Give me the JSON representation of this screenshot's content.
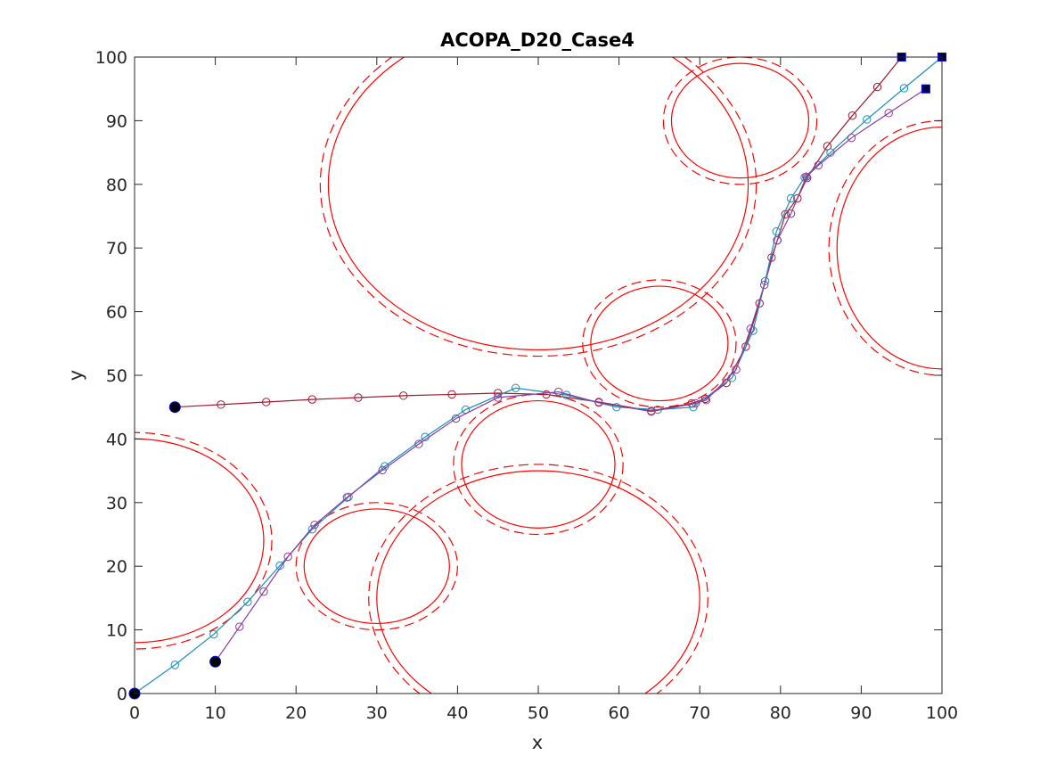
{
  "chart_data": {
    "type": "line",
    "title": "ACOPA_D20_Case4",
    "xlabel": "x",
    "ylabel": "y",
    "xlim": [
      0,
      100
    ],
    "ylim": [
      0,
      100
    ],
    "xticks": [
      0,
      10,
      20,
      30,
      40,
      50,
      60,
      70,
      80,
      90,
      100
    ],
    "yticks": [
      0,
      10,
      20,
      30,
      40,
      50,
      60,
      70,
      80,
      90,
      100
    ],
    "grid": false,
    "obstacles": [
      {
        "cx": 50,
        "cy": 80,
        "rx": 26,
        "ry": 26,
        "rx_outer": 27,
        "ry_outer": 27
      },
      {
        "cx": 75,
        "cy": 90,
        "rx": 8.5,
        "ry": 9,
        "rx_outer": 9.5,
        "ry_outer": 10
      },
      {
        "cx": 65,
        "cy": 55,
        "rx": 8.5,
        "ry": 9,
        "rx_outer": 9.5,
        "ry_outer": 10
      },
      {
        "cx": 100,
        "cy": 70,
        "rx": 13,
        "ry": 19,
        "rx_outer": 14,
        "ry_outer": 20
      },
      {
        "cx": 50,
        "cy": 36,
        "rx": 9.5,
        "ry": 10,
        "rx_outer": 10.5,
        "ry_outer": 11
      },
      {
        "cx": 0,
        "cy": 24,
        "rx": 16,
        "ry": 16,
        "rx_outer": 17,
        "ry_outer": 17
      },
      {
        "cx": 30,
        "cy": 20,
        "rx": 9,
        "ry": 9,
        "rx_outer": 10,
        "ry_outer": 10
      },
      {
        "cx": 50,
        "cy": 15,
        "rx": 20,
        "ry": 20,
        "rx_outer": 21,
        "ry_outer": 21
      }
    ],
    "series": [
      {
        "color": "#a31a2e",
        "start": [
          5,
          45
        ],
        "goal": [
          95,
          100
        ],
        "x": [
          5,
          10.7,
          16.3,
          22,
          27.7,
          33.3,
          39.3,
          45,
          51,
          57.5,
          64,
          69,
          70.7,
          73.3,
          75.7,
          77.4,
          78.9,
          79.6,
          80.6,
          82.1,
          83.3,
          85.8,
          88.9,
          92,
          95
        ],
        "y": [
          45,
          45.4,
          45.8,
          46.2,
          46.5,
          46.8,
          47,
          47.2,
          47,
          45.8,
          44.4,
          45.6,
          46.3,
          48.8,
          54.5,
          61.3,
          68.5,
          71.2,
          75.3,
          77.8,
          81,
          86,
          90.8,
          95.3,
          100
        ]
      },
      {
        "color": "#1a8fba",
        "start": [
          0,
          0
        ],
        "goal": [
          100,
          100
        ],
        "x": [
          0,
          5,
          9.8,
          14,
          18,
          22,
          26.5,
          31,
          36,
          41,
          47.2,
          53.5,
          59.7,
          64.8,
          69.2,
          74,
          76.6,
          78.1,
          79.5,
          81.3,
          83,
          86.2,
          90.7,
          95.3,
          100
        ],
        "y": [
          0,
          4.5,
          9.3,
          14.4,
          20.1,
          25.8,
          30.9,
          35.7,
          40.3,
          44.6,
          48,
          46.9,
          45,
          44.6,
          45,
          49.6,
          57,
          64.8,
          72.6,
          77.8,
          81.1,
          85,
          90.2,
          95.1,
          100
        ]
      },
      {
        "color": "#8e3a9e",
        "start": [
          10,
          5
        ],
        "goal": [
          98,
          95
        ],
        "x": [
          10,
          13,
          16,
          19,
          22.3,
          26.3,
          30.7,
          35.2,
          39.8,
          45,
          52.5,
          57.5,
          64,
          69.5,
          70.8,
          74.5,
          76.3,
          78,
          79.6,
          81.3,
          83.2,
          84.7,
          88.8,
          93.4,
          98
        ],
        "y": [
          5,
          10.5,
          16,
          21.5,
          26.5,
          30.8,
          35.1,
          39.2,
          43.2,
          46.5,
          47.4,
          45.7,
          44.3,
          45.6,
          46.1,
          50.9,
          57.3,
          64.2,
          71.2,
          75.4,
          81.2,
          83,
          87.3,
          91.2,
          95
        ]
      }
    ]
  }
}
